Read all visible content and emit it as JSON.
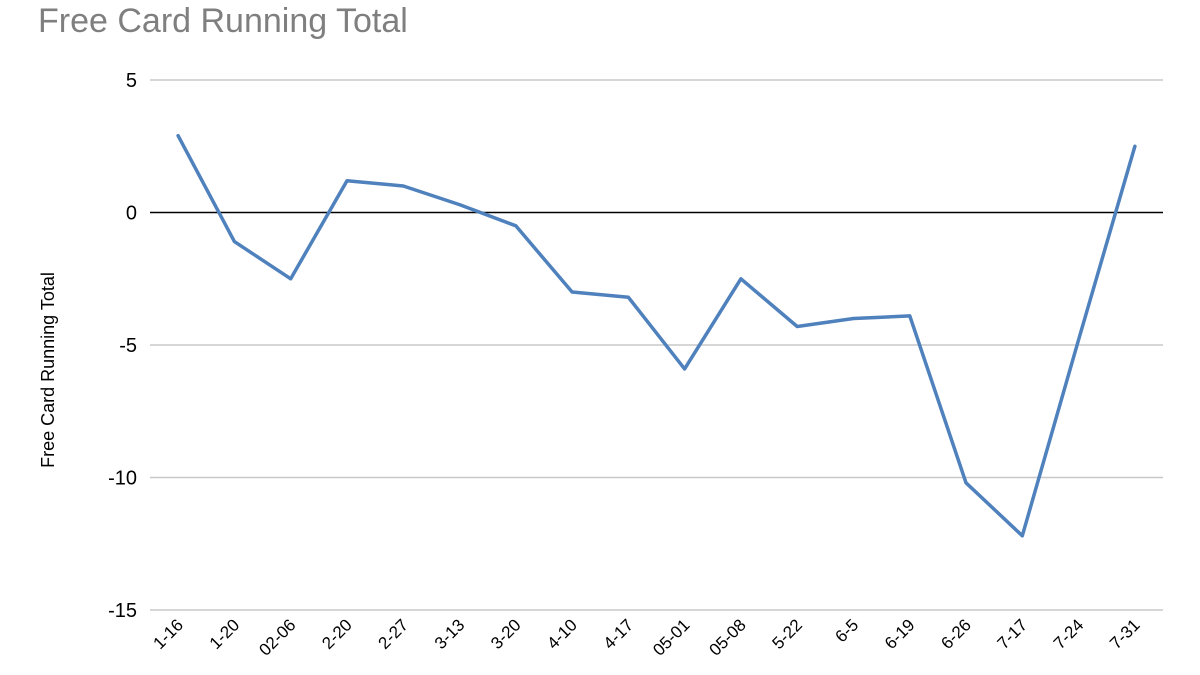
{
  "chart_data": {
    "type": "line",
    "title": "Free Card Running Total",
    "xlabel": "",
    "ylabel": "Free Card Running Total",
    "ylim": [
      -15,
      5
    ],
    "yticks": [
      5,
      0,
      -5,
      -10,
      -15
    ],
    "grid": true,
    "legend": "none",
    "categories": [
      "1-16",
      "1-20",
      "02-06",
      "2-20",
      "2-27",
      "3-13",
      "3-20",
      "4-10",
      "4-17",
      "05-01",
      "05-08",
      "5-22",
      "6-5",
      "6-19",
      "6-26",
      "7-17",
      "7-24",
      "7-31"
    ],
    "series": [
      {
        "color": "#4f81bd",
        "values": [
          2.9,
          -1.1,
          -2.5,
          1.2,
          1.0,
          0.3,
          -0.5,
          -3.0,
          -3.2,
          -5.9,
          -2.5,
          -4.3,
          -4.0,
          -3.9,
          -10.2,
          -12.2,
          -4.8,
          2.5
        ]
      }
    ]
  }
}
